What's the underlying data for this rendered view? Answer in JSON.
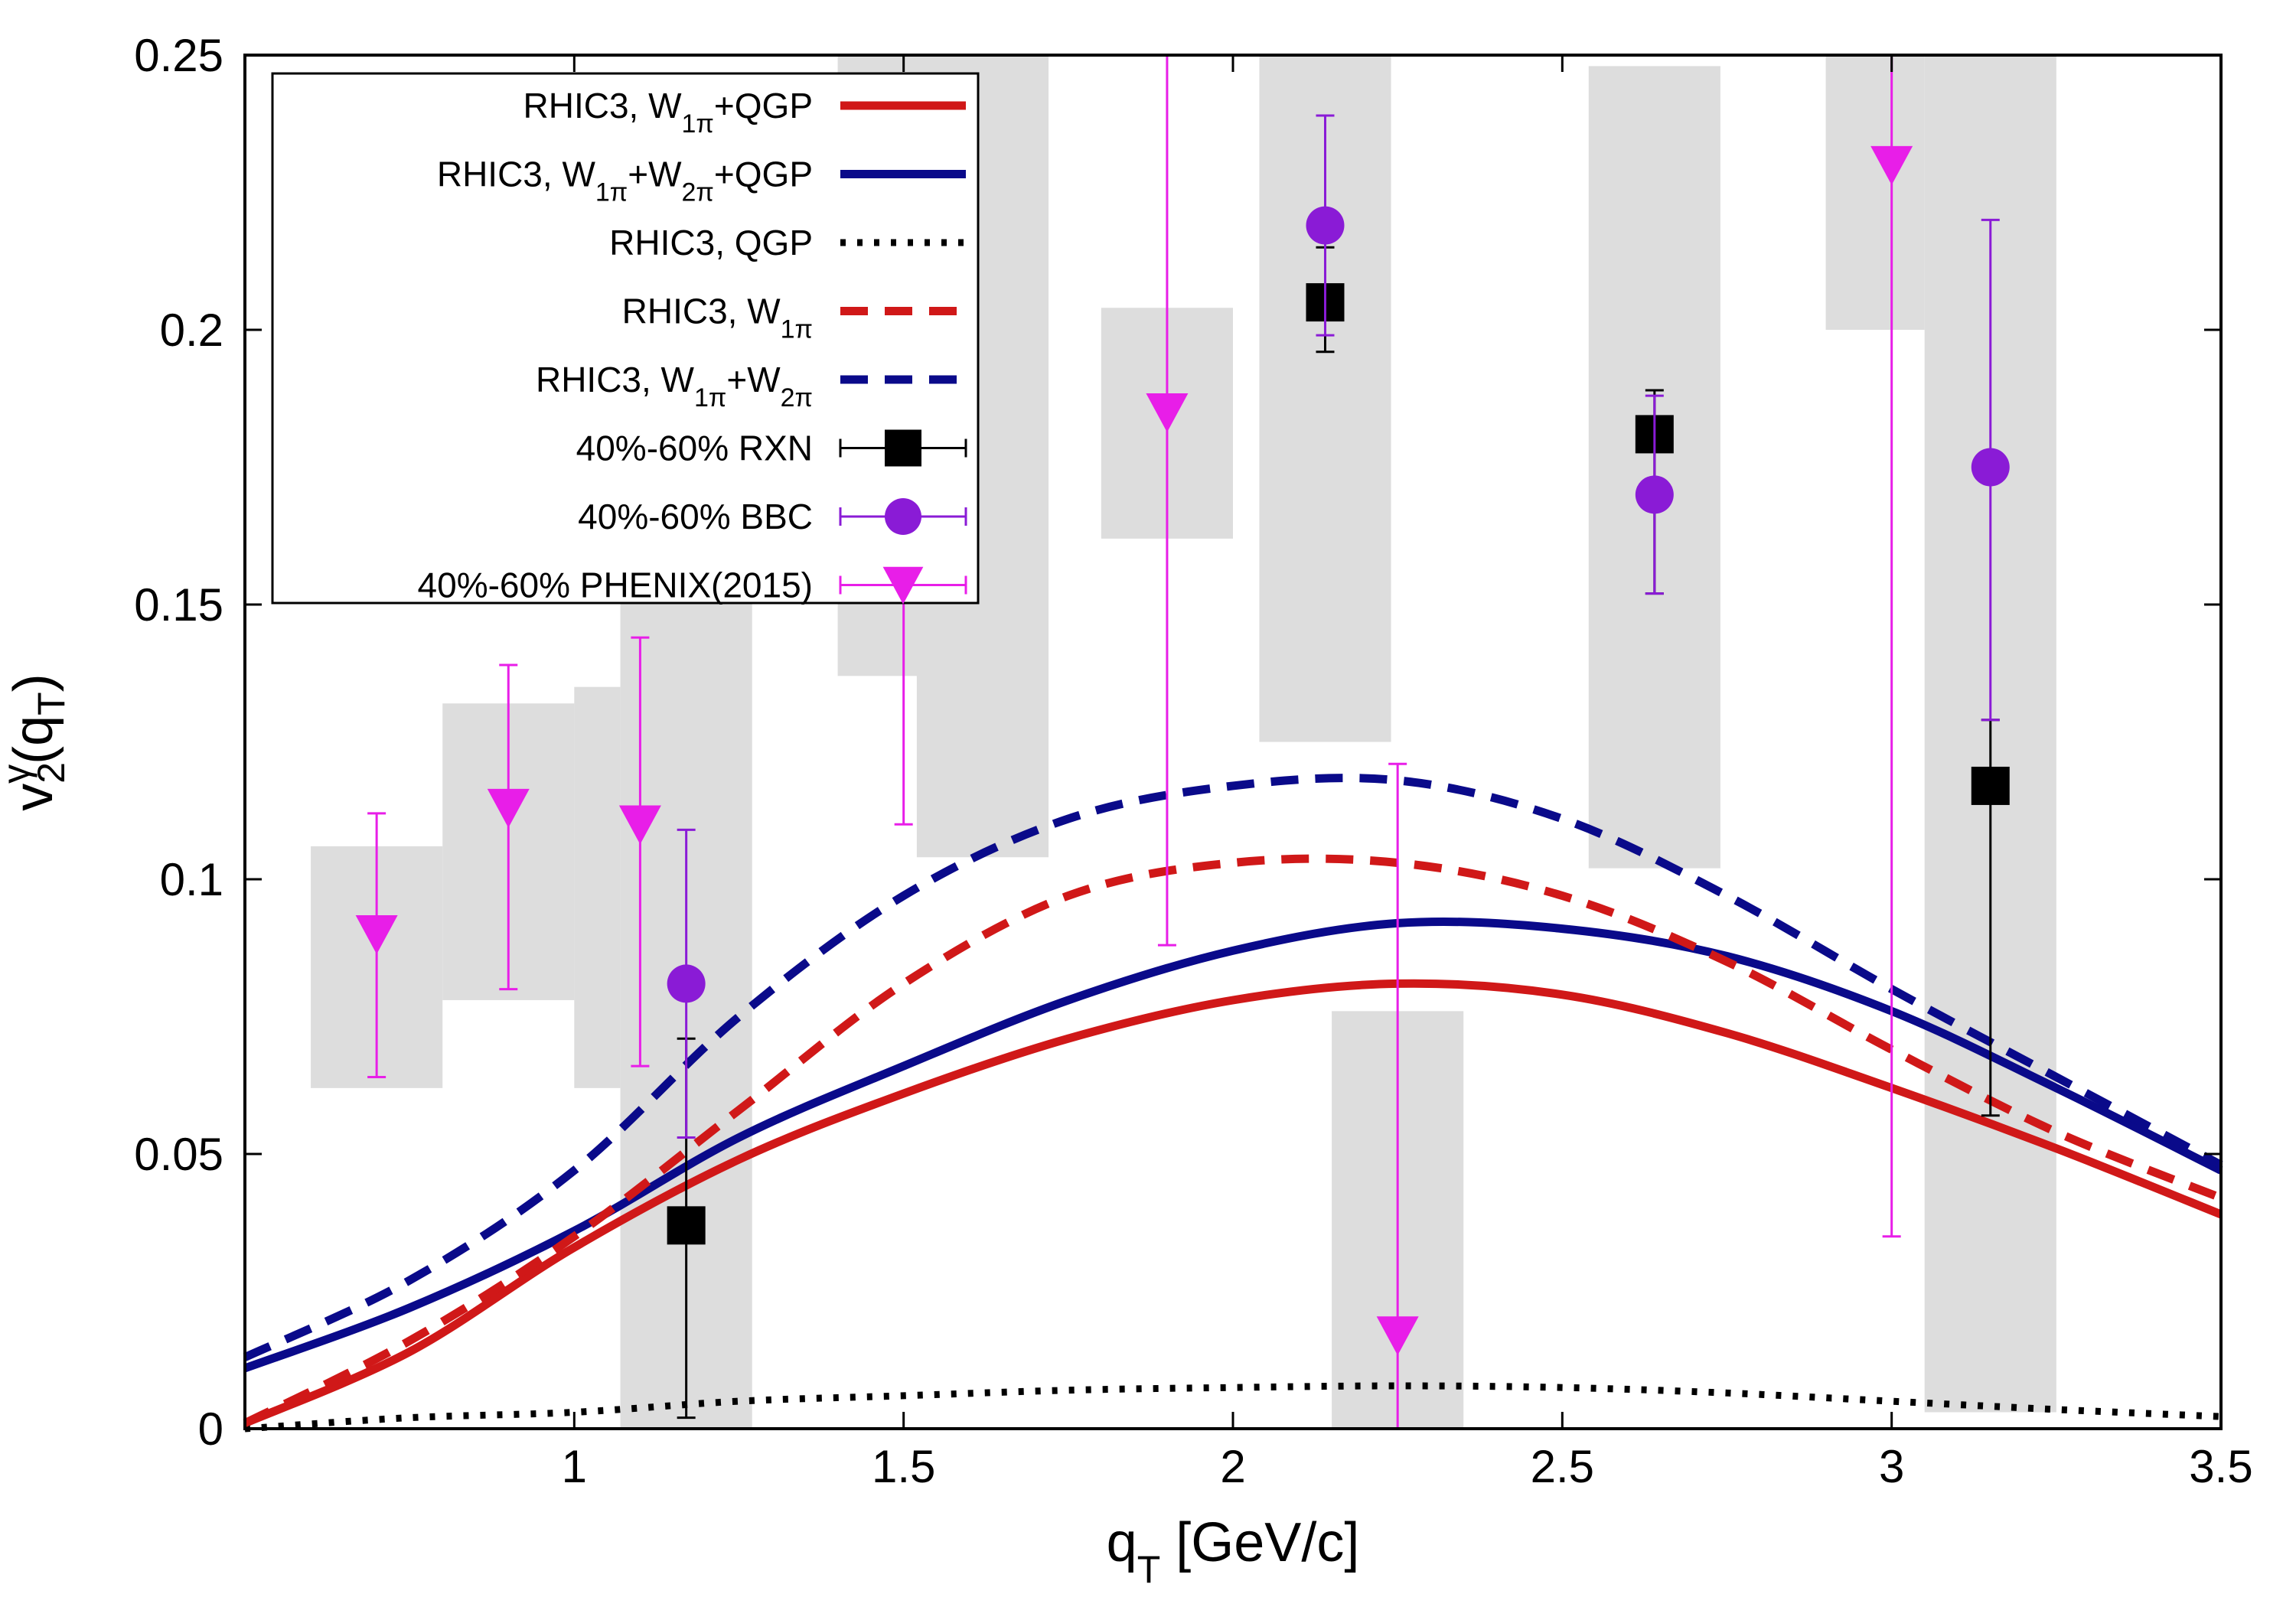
{
  "chart_data": {
    "type": "line",
    "title": "",
    "xlabel": "q_T [GeV/c]",
    "ylabel": "v_2^γ(q_T)",
    "xlim": [
      0.5,
      3.5
    ],
    "ylim": [
      0,
      0.25
    ],
    "grid": false,
    "legend_position": "top-left",
    "x_ticks": [
      {
        "value": 1,
        "label": "1"
      },
      {
        "value": 1.5,
        "label": "1.5"
      },
      {
        "value": 2,
        "label": "2"
      },
      {
        "value": 2.5,
        "label": "2.5"
      },
      {
        "value": 3,
        "label": "3"
      },
      {
        "value": 3.5,
        "label": "3.5"
      }
    ],
    "y_ticks": [
      {
        "value": 0,
        "label": "0"
      },
      {
        "value": 0.05,
        "label": "0.05"
      },
      {
        "value": 0.1,
        "label": "0.1"
      },
      {
        "value": 0.15,
        "label": "0.15"
      },
      {
        "value": 0.2,
        "label": "0.2"
      },
      {
        "value": 0.25,
        "label": "0.25"
      }
    ],
    "curves": [
      {
        "id": "w1pi-qgp",
        "legend": [
          [
            "RHIC3, W",
            ""
          ],
          [
            "1π",
            "sub"
          ],
          [
            "+QGP",
            ""
          ]
        ],
        "color": "#d01818",
        "dash": "solid",
        "x": [
          0.5,
          0.75,
          1.0,
          1.25,
          1.5,
          1.75,
          2.0,
          2.25,
          2.5,
          2.75,
          3.0,
          3.25,
          3.5
        ],
        "y": [
          0.001,
          0.014,
          0.033,
          0.049,
          0.061,
          0.071,
          0.078,
          0.081,
          0.079,
          0.072,
          0.062,
          0.051,
          0.039
        ]
      },
      {
        "id": "w1pi-w2pi-qgp",
        "legend": [
          [
            "RHIC3, W",
            ""
          ],
          [
            "1π",
            "sub"
          ],
          [
            "+W",
            ""
          ],
          [
            "2π",
            "sub"
          ],
          [
            "+QGP",
            ""
          ]
        ],
        "color": "#0a0a8a",
        "dash": "solid",
        "x": [
          0.5,
          0.75,
          1.0,
          1.25,
          1.5,
          1.75,
          2.0,
          2.25,
          2.5,
          2.75,
          3.0,
          3.25,
          3.5
        ],
        "y": [
          0.011,
          0.022,
          0.036,
          0.053,
          0.066,
          0.078,
          0.087,
          0.092,
          0.091,
          0.086,
          0.076,
          0.062,
          0.047
        ]
      },
      {
        "id": "qgp",
        "legend": [
          [
            "RHIC3, QGP",
            ""
          ]
        ],
        "color": "#000000",
        "dash": "dotted",
        "x": [
          0.5,
          0.75,
          1.0,
          1.25,
          1.5,
          1.75,
          2.0,
          2.25,
          2.5,
          2.75,
          3.0,
          3.25,
          3.5
        ],
        "y": [
          0.0,
          0.002,
          0.003,
          0.005,
          0.006,
          0.007,
          0.0075,
          0.0078,
          0.0075,
          0.0065,
          0.005,
          0.0035,
          0.0022
        ]
      },
      {
        "id": "w1pi",
        "legend": [
          [
            "RHIC3, W",
            ""
          ],
          [
            "1π",
            "sub"
          ]
        ],
        "color": "#d01818",
        "dash": "dashed",
        "x": [
          0.5,
          0.75,
          1.0,
          1.25,
          1.5,
          1.75,
          2.0,
          2.25,
          2.5,
          2.75,
          3.0,
          3.25,
          3.5
        ],
        "y": [
          0.001,
          0.016,
          0.035,
          0.058,
          0.081,
          0.097,
          0.103,
          0.103,
          0.097,
          0.085,
          0.069,
          0.054,
          0.042
        ]
      },
      {
        "id": "w1pi-w2pi",
        "legend": [
          [
            "RHIC3, W",
            ""
          ],
          [
            "1π",
            "sub"
          ],
          [
            "+W",
            ""
          ],
          [
            "2π",
            "sub"
          ]
        ],
        "color": "#0a0a8a",
        "dash": "dashed",
        "x": [
          0.5,
          0.75,
          1.0,
          1.25,
          1.5,
          1.75,
          2.0,
          2.25,
          2.5,
          2.75,
          3.0,
          3.25,
          3.5
        ],
        "y": [
          0.013,
          0.027,
          0.047,
          0.075,
          0.097,
          0.111,
          0.117,
          0.118,
          0.111,
          0.097,
          0.08,
          0.064,
          0.048
        ]
      }
    ],
    "points": [
      {
        "id": "rxn",
        "legend": "40%-60% RXN",
        "marker": "square",
        "color": "#000000",
        "data": [
          {
            "x": 1.17,
            "y": 0.037,
            "ylo": 0.002,
            "yhi": 0.071
          },
          {
            "x": 2.14,
            "y": 0.205,
            "ylo": 0.196,
            "yhi": 0.215
          },
          {
            "x": 2.64,
            "y": 0.181,
            "ylo": 0.152,
            "yhi": 0.189
          },
          {
            "x": 3.15,
            "y": 0.117,
            "ylo": 0.057,
            "yhi": 0.129
          }
        ]
      },
      {
        "id": "bbc",
        "legend": "40%-60% BBC",
        "marker": "circle",
        "color": "#8a1bd6",
        "data": [
          {
            "x": 1.17,
            "y": 0.081,
            "ylo": 0.053,
            "yhi": 0.109
          },
          {
            "x": 2.14,
            "y": 0.219,
            "ylo": 0.199,
            "yhi": 0.239
          },
          {
            "x": 2.64,
            "y": 0.17,
            "ylo": 0.152,
            "yhi": 0.188
          },
          {
            "x": 3.15,
            "y": 0.175,
            "ylo": 0.129,
            "yhi": 0.22
          }
        ]
      },
      {
        "id": "phenix2015",
        "legend": "40%-60% PHENIX(2015)",
        "marker": "triangle-down",
        "color": "#e81ee8",
        "data": [
          {
            "x": 0.7,
            "y": 0.09,
            "ylo": 0.064,
            "yhi": 0.112
          },
          {
            "x": 0.9,
            "y": 0.113,
            "ylo": 0.08,
            "yhi": 0.139
          },
          {
            "x": 1.1,
            "y": 0.11,
            "ylo": 0.066,
            "yhi": 0.144
          },
          {
            "x": 1.5,
            "y": 0.154,
            "ylo": 0.11,
            "yhi": 0.198
          },
          {
            "x": 1.9,
            "y": 0.185,
            "ylo": 0.088,
            "yhi": 0.25
          },
          {
            "x": 2.25,
            "y": 0.017,
            "ylo": 0.0,
            "yhi": 0.121
          },
          {
            "x": 3.0,
            "y": 0.23,
            "ylo": 0.035,
            "yhi": 0.25
          }
        ]
      }
    ],
    "systematic_bands": [
      {
        "x0": 0.6,
        "x1": 0.8,
        "y0": 0.062,
        "y1": 0.106
      },
      {
        "x0": 0.8,
        "x1": 1.0,
        "y0": 0.078,
        "y1": 0.132
      },
      {
        "x0": 1.0,
        "x1": 1.07,
        "y0": 0.062,
        "y1": 0.135
      },
      {
        "x0": 1.07,
        "x1": 1.27,
        "y0": 0.0,
        "y1": 0.152
      },
      {
        "x0": 1.4,
        "x1": 1.6,
        "y0": 0.137,
        "y1": 0.25
      },
      {
        "x0": 1.52,
        "x1": 1.72,
        "y0": 0.104,
        "y1": 0.25
      },
      {
        "x0": 1.8,
        "x1": 2.0,
        "y0": 0.162,
        "y1": 0.204
      },
      {
        "x0": 2.04,
        "x1": 2.24,
        "y0": 0.125,
        "y1": 0.25
      },
      {
        "x0": 2.15,
        "x1": 2.35,
        "y0": 0.0,
        "y1": 0.076
      },
      {
        "x0": 2.54,
        "x1": 2.74,
        "y0": 0.102,
        "y1": 0.248
      },
      {
        "x0": 2.9,
        "x1": 3.05,
        "y0": 0.2,
        "y1": 0.25
      },
      {
        "x0": 3.05,
        "x1": 3.25,
        "y0": 0.003,
        "y1": 0.25
      }
    ]
  }
}
